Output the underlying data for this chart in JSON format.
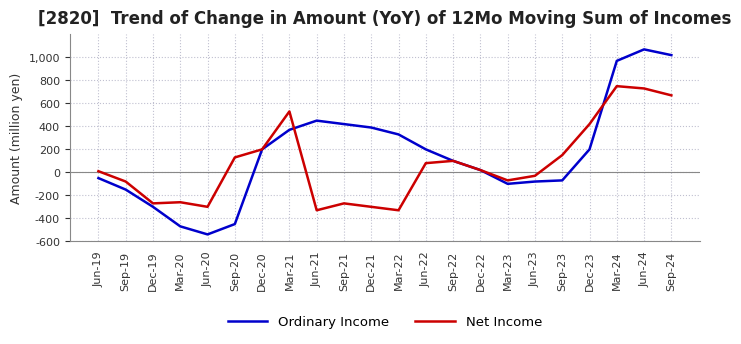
{
  "title": "[2820]  Trend of Change in Amount (YoY) of 12Mo Moving Sum of Incomes",
  "ylabel": "Amount (million yen)",
  "ylim": [
    -600,
    1200
  ],
  "yticks": [
    -600,
    -400,
    -200,
    0,
    200,
    400,
    600,
    800,
    1000
  ],
  "background_color": "#ffffff",
  "grid_color": "#c0c0d0",
  "ordinary_income_color": "#0000cc",
  "net_income_color": "#cc0000",
  "x_labels": [
    "Jun-19",
    "Sep-19",
    "Dec-19",
    "Mar-20",
    "Jun-20",
    "Sep-20",
    "Dec-20",
    "Mar-21",
    "Jun-21",
    "Sep-21",
    "Dec-21",
    "Mar-22",
    "Jun-22",
    "Sep-22",
    "Dec-22",
    "Mar-23",
    "Jun-23",
    "Sep-23",
    "Dec-23",
    "Mar-24",
    "Jun-24",
    "Sep-24"
  ],
  "ordinary_income": [
    -50,
    -150,
    -300,
    -470,
    -540,
    -450,
    200,
    370,
    450,
    420,
    390,
    330,
    200,
    100,
    20,
    -100,
    -80,
    -70,
    200,
    970,
    1070,
    1020
  ],
  "net_income": [
    10,
    -80,
    -270,
    -260,
    -300,
    130,
    200,
    530,
    -330,
    -270,
    -300,
    -330,
    80,
    100,
    20,
    -70,
    -30,
    150,
    420,
    750,
    730,
    670
  ],
  "title_fontsize": 12,
  "axis_fontsize": 9,
  "tick_fontsize": 8
}
